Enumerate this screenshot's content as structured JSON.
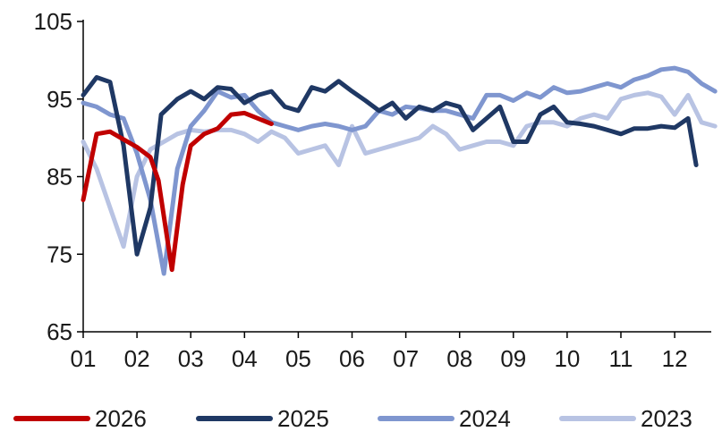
{
  "chart_data": {
    "type": "line",
    "title": "",
    "xlabel": "",
    "ylabel": "",
    "ylim": [
      65,
      105
    ],
    "y_ticks": [
      "105",
      "95",
      "85",
      "75",
      "65"
    ],
    "y_tick_values": [
      105,
      95,
      85,
      75,
      65
    ],
    "x_ticks": [
      "01",
      "02",
      "03",
      "04",
      "05",
      "06",
      "07",
      "08",
      "09",
      "10",
      "11",
      "12"
    ],
    "x_domain": [
      1,
      12.75
    ],
    "grid": false,
    "legend_placement": "bottom",
    "series": [
      {
        "name": "2026",
        "color": "#c00000",
        "x": [
          1.0,
          1.25,
          1.5,
          1.75,
          2.0,
          2.25,
          2.4,
          2.65,
          2.85,
          3.0,
          3.25,
          3.5,
          3.75,
          4.0,
          4.25,
          4.5
        ],
        "y": [
          82,
          90.5,
          90.8,
          89.8,
          88.8,
          87.5,
          84.5,
          73,
          84,
          89,
          90.5,
          91.2,
          93,
          93.2,
          92.5,
          91.8
        ]
      },
      {
        "name": "2025",
        "color": "#1f3864",
        "x": [
          1.0,
          1.25,
          1.5,
          1.75,
          2.0,
          2.25,
          2.45,
          2.75,
          3.0,
          3.25,
          3.5,
          3.75,
          4.0,
          4.25,
          4.5,
          4.75,
          5.0,
          5.25,
          5.5,
          5.75,
          6.0,
          6.25,
          6.5,
          6.75,
          7.0,
          7.25,
          7.5,
          7.75,
          8.0,
          8.25,
          8.5,
          8.75,
          9.0,
          9.25,
          9.5,
          9.75,
          10.0,
          10.25,
          10.5,
          10.75,
          11.0,
          11.25,
          11.5,
          11.75,
          12.0,
          12.25,
          12.4
        ],
        "y": [
          95.5,
          97.8,
          97.2,
          89,
          75,
          81,
          93,
          95,
          96,
          95,
          96.5,
          96.3,
          94.5,
          95.5,
          96,
          94,
          93.5,
          96.5,
          96,
          97.3,
          96,
          94.8,
          93.5,
          94.5,
          92.5,
          94,
          93.5,
          94.5,
          94,
          91,
          92.5,
          94,
          89.5,
          89.5,
          93,
          94,
          92,
          91.8,
          91.5,
          91,
          90.5,
          91.2,
          91.2,
          91.5,
          91.3,
          92.5,
          86.5
        ]
      },
      {
        "name": "2024",
        "color": "#7f96cf",
        "x": [
          1.0,
          1.25,
          1.5,
          1.75,
          2.0,
          2.25,
          2.5,
          2.75,
          3.0,
          3.25,
          3.5,
          3.75,
          4.0,
          4.25,
          4.5,
          4.75,
          5.0,
          5.25,
          5.5,
          5.75,
          6.0,
          6.25,
          6.5,
          6.75,
          7.0,
          7.25,
          7.5,
          7.75,
          8.0,
          8.25,
          8.5,
          8.75,
          9.0,
          9.25,
          9.5,
          9.75,
          10.0,
          10.25,
          10.5,
          10.75,
          11.0,
          11.25,
          11.5,
          11.75,
          12.0,
          12.25,
          12.5,
          12.75
        ],
        "y": [
          94.5,
          94,
          93,
          92.5,
          88,
          82,
          72.5,
          86,
          91.5,
          93.5,
          96,
          95.2,
          95.5,
          93.5,
          92,
          91.5,
          91,
          91.5,
          91.8,
          91.5,
          91,
          91.5,
          93.5,
          93,
          94,
          93.8,
          93.5,
          93.5,
          93,
          92.5,
          95.5,
          95.5,
          94.8,
          95.8,
          95.2,
          96.5,
          95.8,
          96,
          96.5,
          97,
          96.5,
          97.5,
          98,
          98.8,
          99,
          98.5,
          97,
          96
        ]
      },
      {
        "name": "2023",
        "color": "#b8c3e3",
        "x": [
          1.0,
          1.25,
          1.5,
          1.75,
          2.0,
          2.25,
          2.5,
          2.75,
          3.0,
          3.25,
          3.5,
          3.75,
          4.0,
          4.25,
          4.5,
          4.75,
          5.0,
          5.25,
          5.5,
          5.75,
          6.0,
          6.25,
          6.5,
          6.75,
          7.0,
          7.25,
          7.5,
          7.75,
          8.0,
          8.25,
          8.5,
          8.75,
          9.0,
          9.25,
          9.5,
          9.75,
          10.0,
          10.25,
          10.5,
          10.75,
          11.0,
          11.25,
          11.5,
          11.75,
          12.0,
          12.25,
          12.5,
          12.75
        ],
        "y": [
          89.5,
          86,
          81,
          76,
          85,
          88.5,
          89.5,
          90.5,
          91,
          90.8,
          91,
          91,
          90.5,
          89.5,
          90.8,
          90,
          88,
          88.5,
          89,
          86.5,
          91.5,
          88,
          88.5,
          89,
          89.5,
          90,
          91.5,
          90.5,
          88.5,
          89,
          89.5,
          89.5,
          89,
          91.5,
          92,
          92,
          91.5,
          92.5,
          93,
          92.5,
          95,
          95.5,
          95.8,
          95.3,
          93,
          95.5,
          92,
          91.5
        ]
      }
    ]
  }
}
